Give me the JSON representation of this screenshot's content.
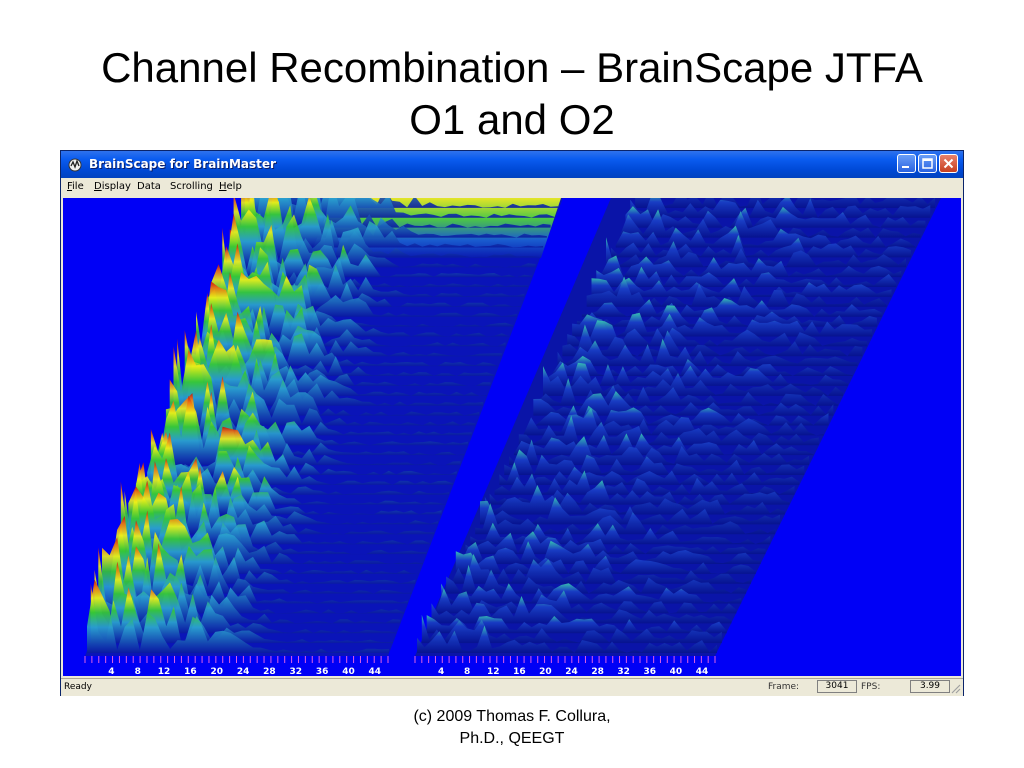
{
  "slide": {
    "title_line1": "Channel Recombination – BrainScape JTFA",
    "title_line2": "O1 and O2",
    "credit_line1": "(c) 2009 Thomas F. Collura,",
    "credit_line2": "Ph.D., QEEGT"
  },
  "window": {
    "title": "BrainScape for BrainMaster",
    "icon": "brainscape-app-icon"
  },
  "menu": {
    "items": [
      {
        "label": "File",
        "underline": "F",
        "rest": "ile"
      },
      {
        "label": "Display",
        "underline": "D",
        "rest": "isplay"
      },
      {
        "label": "Data",
        "underline": "",
        "rest": "Data"
      },
      {
        "label": "Scrolling",
        "underline": "",
        "rest": "Scrolling"
      },
      {
        "label": "Help",
        "underline": "H",
        "rest": "elp"
      }
    ]
  },
  "status": {
    "ready": "Ready",
    "frame_label": "Frame:",
    "frame_value": "3041",
    "fps_label": "FPS:",
    "fps_value": "3.99"
  },
  "spectrum": {
    "background_color": "#0000f6",
    "left_axis_ticks": [
      "4",
      "8",
      "12",
      "16",
      "20",
      "24",
      "28",
      "32",
      "36",
      "40",
      "44"
    ],
    "right_axis_ticks": [
      "4",
      "8",
      "12",
      "16",
      "20",
      "24",
      "28",
      "32",
      "36",
      "40",
      "44"
    ]
  }
}
